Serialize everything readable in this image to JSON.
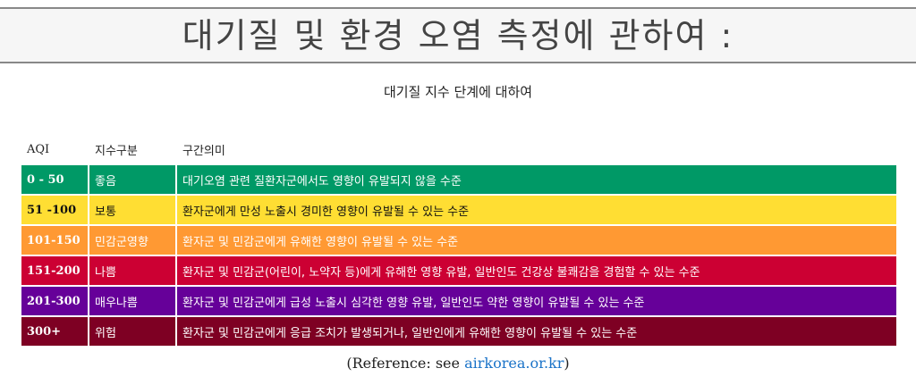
{
  "header": {
    "title": "대기질 및 환경 오염 측정에 관하여 :"
  },
  "subtitle": "대기질 지수 단계에 대하여",
  "table": {
    "columns": [
      "AQI",
      "지수구분",
      "구간의미"
    ],
    "rows": [
      {
        "aqi": "0 - 50",
        "level": "좋음",
        "meaning": "대기오염 관련 질환자군에서도 영향이 유발되지 않을 수준",
        "bg": "#009966",
        "fg": "#ffffff"
      },
      {
        "aqi": "51 -100",
        "level": "보통",
        "meaning": "환자군에게 만성 노출시 경미한 영향이 유발될 수 있는 수준",
        "bg": "#ffde33",
        "fg": "#111111"
      },
      {
        "aqi": "101-150",
        "level": "민감군영향",
        "meaning": "환자군 및 민감군에게 유해한 영향이 유발될 수 있는 수준",
        "bg": "#ff9933",
        "fg": "#ffffff"
      },
      {
        "aqi": "151-200",
        "level": "나쁨",
        "meaning": "환자군 및 민감군(어린이, 노약자 등)에게 유해한 영향 유발, 일반인도 건강상 불쾌감을 경험할 수 있는 수준",
        "bg": "#cc0033",
        "fg": "#ffffff"
      },
      {
        "aqi": "201-300",
        "level": "매우나쁨",
        "meaning": "환자군 및 민감군에게 급성 노출시 심각한 영향 유발, 일반인도 약한 영향이 유발될 수 있는 수준",
        "bg": "#660099",
        "fg": "#ffffff"
      },
      {
        "aqi": "300+",
        "level": "위험",
        "meaning": "환자군 및 민감군에게 응급 조치가 발생되거나, 일반인에게 유해한 영향이 유발될 수 있는 수준",
        "bg": "#7e0023",
        "fg": "#ffffff"
      }
    ]
  },
  "reference": {
    "prefix": "(Reference: see ",
    "link": "airkorea.or.kr",
    "suffix": ")",
    "link_color": "#1a73c8"
  }
}
